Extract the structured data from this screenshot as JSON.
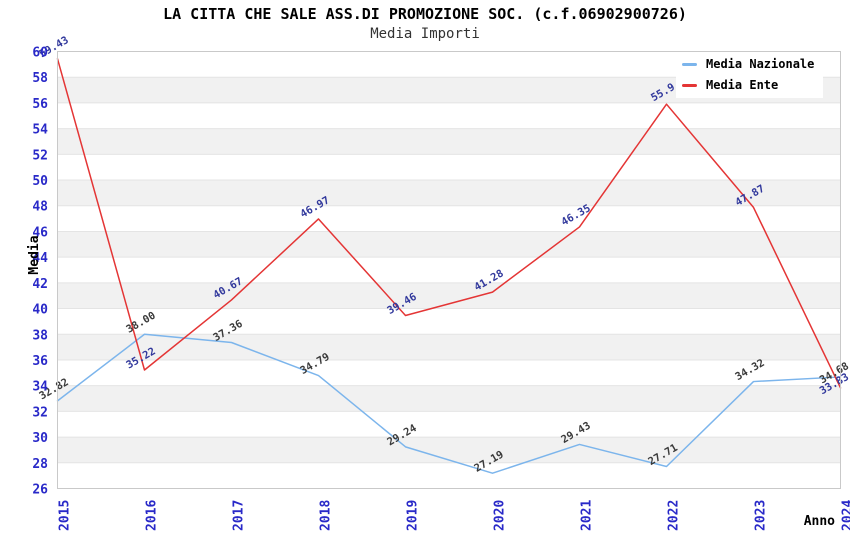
{
  "title": "LA CITTA CHE SALE ASS.DI PROMOZIONE SOC. (c.f.06902900726)",
  "subtitle": "Media Importi",
  "chart_data": {
    "type": "line",
    "x": [
      2015,
      2016,
      2017,
      2018,
      2019,
      2020,
      2021,
      2022,
      2023,
      2024
    ],
    "series": [
      {
        "name": "Media Nazionale",
        "color": "#7cb5ec",
        "label_color": "#3a3a3a",
        "values": [
          32.82,
          38.0,
          37.36,
          34.79,
          29.24,
          27.19,
          29.43,
          27.71,
          34.32,
          34.68
        ],
        "labels": [
          "32.82",
          "38.00",
          "37.36",
          "34.79",
          "29.24",
          "27.19",
          "29.43",
          "27.71",
          "34.32",
          "34.68"
        ]
      },
      {
        "name": "Media Ente",
        "color": "#e43535",
        "label_color": "#31389c",
        "values": [
          59.43,
          35.22,
          40.67,
          46.97,
          39.46,
          41.28,
          46.35,
          55.9,
          47.87,
          33.83
        ],
        "labels": [
          "59.43",
          "35.22",
          "40.67",
          "46.97",
          "39.46",
          "41.28",
          "46.35",
          "55.9",
          "47.87",
          "33.83"
        ]
      }
    ],
    "xlabel": "Anno",
    "ylabel": "Media",
    "ylim": [
      26,
      60
    ],
    "ytick_step": 2,
    "grid": "horizontal gridlines with alternating shaded bands",
    "legend_position": "top-right",
    "colors": {
      "tick_label": "#2929c8",
      "axis_title": "#000000",
      "band_fill": "#f1f1f1",
      "grid_line": "#e4e4e4",
      "plot_border": "#c9c9c9",
      "background": "#ffffff"
    }
  }
}
